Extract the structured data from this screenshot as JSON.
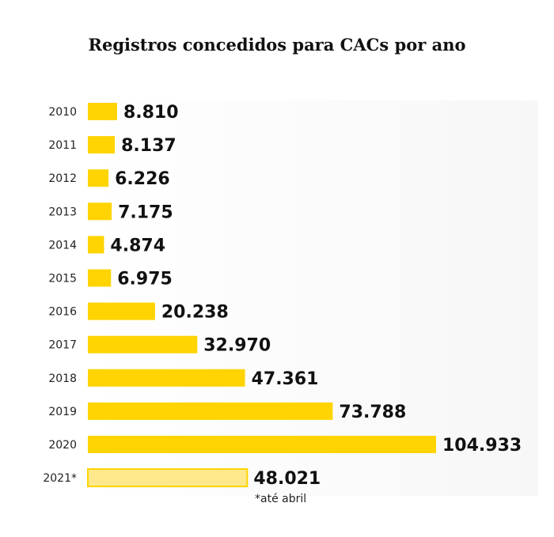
{
  "chart_data": {
    "type": "bar",
    "orientation": "horizontal",
    "title": "Registros concedidos para CACs por ano",
    "categories": [
      "2010",
      "2011",
      "2012",
      "2013",
      "2014",
      "2015",
      "2016",
      "2017",
      "2018",
      "2019",
      "2020",
      "2021*"
    ],
    "values": [
      8810,
      8137,
      6226,
      7175,
      4874,
      6975,
      20238,
      32970,
      47361,
      73788,
      104933,
      48021
    ],
    "value_labels": [
      "8.810",
      "8.137",
      "6.226",
      "7.175",
      "4.874",
      "6.975",
      "20.238",
      "32.970",
      "47.361",
      "73.788",
      "104.933",
      "48.021"
    ],
    "highlight_partial": "2021*",
    "footnote": "*até abril",
    "grid": false,
    "legend": "none",
    "colors": {
      "bar": "#FFD400",
      "bar_partial": "#FFE98C",
      "bar_partial_border": "#FFD400",
      "text": "#111111"
    }
  }
}
